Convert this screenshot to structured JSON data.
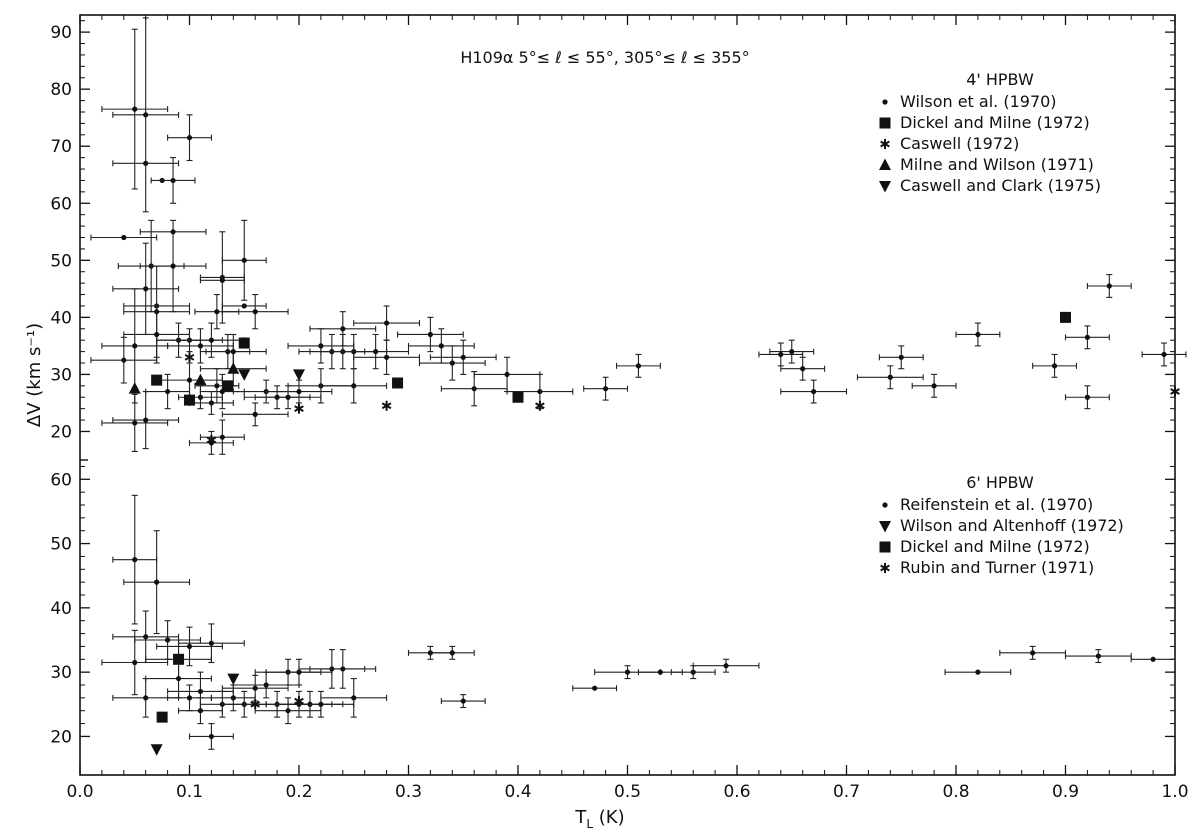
{
  "chart_data": {
    "type": "scatter",
    "title": "H109α   5°≤ ℓ ≤ 55°,  305°≤ ℓ ≤ 355°",
    "xlabel": "T",
    "xlabel_sub": "L",
    "xlabel_unit": " (K)",
    "ylabel": "ΔV (km s⁻¹)",
    "xlim": [
      0.0,
      1.0
    ],
    "x_ticks": [
      "0.0",
      "0.1",
      "0.2",
      "0.3",
      "0.4",
      "0.5",
      "0.6",
      "0.7",
      "0.8",
      "0.9",
      "1.0"
    ],
    "grid": false,
    "panels": [
      {
        "name": "upper",
        "ylim": [
          15,
          93
        ],
        "y_ticks": [
          "20",
          "30",
          "40",
          "50",
          "60",
          "70",
          "80",
          "90"
        ],
        "legend_title": "4' HPBW",
        "legend_placement": "top-right",
        "series": [
          {
            "name": "Wilson et al. (1970)",
            "marker": "dot",
            "points": [
              [
                0.04,
                54,
                3,
                0
              ],
              [
                0.05,
                76.5,
                3,
                14
              ],
              [
                0.06,
                75.5,
                3,
                17
              ],
              [
                0.06,
                67,
                3,
                0
              ],
              [
                0.065,
                49,
                3,
                8
              ],
              [
                0.06,
                45,
                3,
                8
              ],
              [
                0.07,
                41,
                3,
                8
              ],
              [
                0.07,
                42,
                3,
                0
              ],
              [
                0.085,
                49,
                3,
                8
              ],
              [
                0.085,
                55,
                3,
                0
              ],
              [
                0.075,
                64,
                0,
                0
              ],
              [
                0.085,
                64,
                2,
                4
              ],
              [
                0.1,
                71.5,
                2,
                4
              ],
              [
                0.05,
                35,
                3,
                10
              ],
              [
                0.05,
                21.5,
                3,
                5
              ],
              [
                0.06,
                22,
                3,
                5
              ],
              [
                0.04,
                32.5,
                3,
                4
              ],
              [
                0.07,
                37,
                3,
                5
              ],
              [
                0.08,
                27,
                2,
                3
              ],
              [
                0.09,
                36,
                2,
                3
              ],
              [
                0.1,
                36,
                3,
                2
              ],
              [
                0.1,
                29,
                3,
                3
              ],
              [
                0.11,
                26,
                2,
                2
              ],
              [
                0.11,
                35,
                3,
                3
              ],
              [
                0.12,
                25,
                2,
                2
              ],
              [
                0.12,
                36,
                3,
                3
              ],
              [
                0.125,
                41,
                2,
                3
              ],
              [
                0.13,
                47,
                2,
                8
              ],
              [
                0.13,
                46.5,
                2,
                0
              ],
              [
                0.135,
                34,
                2,
                3
              ],
              [
                0.13,
                27,
                2,
                3
              ],
              [
                0.125,
                28,
                2,
                3
              ],
              [
                0.14,
                31,
                3,
                3
              ],
              [
                0.14,
                34,
                3,
                3
              ],
              [
                0.15,
                50,
                2,
                7
              ],
              [
                0.15,
                42,
                2,
                0
              ],
              [
                0.16,
                41,
                3,
                3
              ],
              [
                0.13,
                19,
                2,
                3
              ],
              [
                0.12,
                18,
                2,
                2
              ],
              [
                0.16,
                23,
                3,
                2
              ],
              [
                0.17,
                27,
                3,
                2
              ],
              [
                0.18,
                26,
                3,
                2
              ],
              [
                0.19,
                26,
                3,
                2
              ],
              [
                0.2,
                27,
                3,
                2
              ],
              [
                0.22,
                28,
                3,
                3
              ],
              [
                0.22,
                35,
                3,
                3
              ],
              [
                0.23,
                34,
                3,
                3
              ],
              [
                0.24,
                38,
                3,
                3
              ],
              [
                0.24,
                34,
                3,
                3
              ],
              [
                0.25,
                34,
                3,
                3
              ],
              [
                0.25,
                28,
                3,
                3
              ],
              [
                0.27,
                34,
                3,
                3
              ],
              [
                0.28,
                39,
                3,
                3
              ],
              [
                0.28,
                33,
                3,
                3
              ],
              [
                0.32,
                37,
                3,
                3
              ],
              [
                0.33,
                35,
                3,
                3
              ],
              [
                0.34,
                32,
                3,
                3
              ],
              [
                0.35,
                33,
                3,
                3
              ],
              [
                0.36,
                27.5,
                3,
                3
              ],
              [
                0.39,
                30,
                3,
                3
              ],
              [
                0.42,
                27,
                3,
                3
              ],
              [
                0.48,
                27.5,
                2,
                2
              ],
              [
                0.51,
                31.5,
                2,
                2
              ],
              [
                0.64,
                33.5,
                2,
                2
              ],
              [
                0.65,
                34,
                2,
                2
              ],
              [
                0.66,
                31,
                2,
                2
              ],
              [
                0.67,
                27,
                3,
                2
              ],
              [
                0.74,
                29.5,
                3,
                2
              ],
              [
                0.75,
                33,
                2,
                2
              ],
              [
                0.78,
                28,
                2,
                2
              ],
              [
                0.82,
                37,
                2,
                2
              ],
              [
                0.89,
                31.5,
                2,
                2
              ],
              [
                0.92,
                36.5,
                2,
                2
              ],
              [
                0.92,
                26,
                2,
                2
              ],
              [
                0.94,
                45.5,
                2,
                2
              ],
              [
                0.99,
                33.5,
                2,
                2
              ]
            ]
          },
          {
            "name": "Dickel and Milne (1972)",
            "marker": "square",
            "points": [
              [
                0.07,
                29
              ],
              [
                0.1,
                25.5
              ],
              [
                0.135,
                28
              ],
              [
                0.15,
                35.5
              ],
              [
                0.29,
                28.5
              ],
              [
                0.4,
                26
              ],
              [
                0.9,
                40
              ]
            ]
          },
          {
            "name": "Caswell (1972)",
            "marker": "star",
            "points": [
              [
                0.1,
                33
              ],
              [
                0.12,
                18.5
              ],
              [
                0.2,
                24
              ],
              [
                0.28,
                24.5
              ],
              [
                0.42,
                24.5
              ],
              [
                1.0,
                27
              ]
            ]
          },
          {
            "name": "Milne and Wilson (1971)",
            "marker": "triangle-up",
            "points": [
              [
                0.05,
                27.5
              ],
              [
                0.11,
                29
              ],
              [
                0.14,
                31
              ]
            ]
          },
          {
            "name": "Caswell and Clark (1975)",
            "marker": "triangle-down",
            "points": [
              [
                0.15,
                30
              ],
              [
                0.2,
                30
              ]
            ]
          }
        ]
      },
      {
        "name": "lower",
        "ylim": [
          14,
          63
        ],
        "y_ticks": [
          "20",
          "30",
          "40",
          "50",
          "60"
        ],
        "legend_title": "6' HPBW",
        "legend_placement": "right",
        "series": [
          {
            "name": "Reifenstein et al. (1970)",
            "marker": "dot",
            "points": [
              [
                0.05,
                47.5,
                2,
                10
              ],
              [
                0.07,
                44,
                3,
                8
              ],
              [
                0.05,
                31.5,
                3,
                5
              ],
              [
                0.06,
                35.5,
                3,
                4
              ],
              [
                0.06,
                26,
                3,
                3
              ],
              [
                0.08,
                35,
                3,
                3
              ],
              [
                0.09,
                32,
                3,
                3
              ],
              [
                0.09,
                29,
                3,
                3
              ],
              [
                0.1,
                34,
                3,
                3
              ],
              [
                0.1,
                26,
                2,
                2
              ],
              [
                0.11,
                27,
                3,
                3
              ],
              [
                0.11,
                24,
                2,
                2
              ],
              [
                0.12,
                34.5,
                3,
                3
              ],
              [
                0.12,
                20,
                2,
                2
              ],
              [
                0.13,
                25,
                2,
                2
              ],
              [
                0.14,
                26,
                2,
                2
              ],
              [
                0.15,
                25,
                2,
                2
              ],
              [
                0.16,
                27.5,
                3,
                2
              ],
              [
                0.17,
                28,
                3,
                2
              ],
              [
                0.18,
                25,
                3,
                2
              ],
              [
                0.19,
                24,
                3,
                2
              ],
              [
                0.19,
                30,
                3,
                2
              ],
              [
                0.2,
                30,
                3,
                2
              ],
              [
                0.2,
                25,
                3,
                2
              ],
              [
                0.21,
                25,
                3,
                2
              ],
              [
                0.22,
                25,
                3,
                2
              ],
              [
                0.23,
                30.5,
                3,
                3
              ],
              [
                0.24,
                30.5,
                3,
                3
              ],
              [
                0.25,
                26,
                3,
                3
              ],
              [
                0.32,
                33,
                2,
                1
              ],
              [
                0.34,
                33,
                2,
                1
              ],
              [
                0.35,
                25.5,
                2,
                1
              ],
              [
                0.47,
                27.5,
                2,
                0
              ],
              [
                0.5,
                30,
                3,
                1
              ],
              [
                0.53,
                30,
                2,
                0
              ],
              [
                0.56,
                30,
                2,
                1
              ],
              [
                0.59,
                31,
                3,
                1
              ],
              [
                0.82,
                30,
                3,
                0
              ],
              [
                0.87,
                33,
                3,
                1
              ],
              [
                0.93,
                32.5,
                3,
                1
              ],
              [
                0.98,
                32,
                2,
                0
              ]
            ]
          },
          {
            "name": "Wilson and Altenhoff (1972)",
            "marker": "triangle-down",
            "points": [
              [
                0.07,
                18
              ],
              [
                0.14,
                29
              ]
            ]
          },
          {
            "name": "Dickel and Milne (1972)",
            "marker": "square",
            "points": [
              [
                0.075,
                23
              ],
              [
                0.09,
                32
              ]
            ]
          },
          {
            "name": "Rubin and Turner (1971)",
            "marker": "star",
            "points": [
              [
                0.16,
                25
              ],
              [
                0.2,
                25.5
              ]
            ]
          }
        ]
      }
    ]
  }
}
